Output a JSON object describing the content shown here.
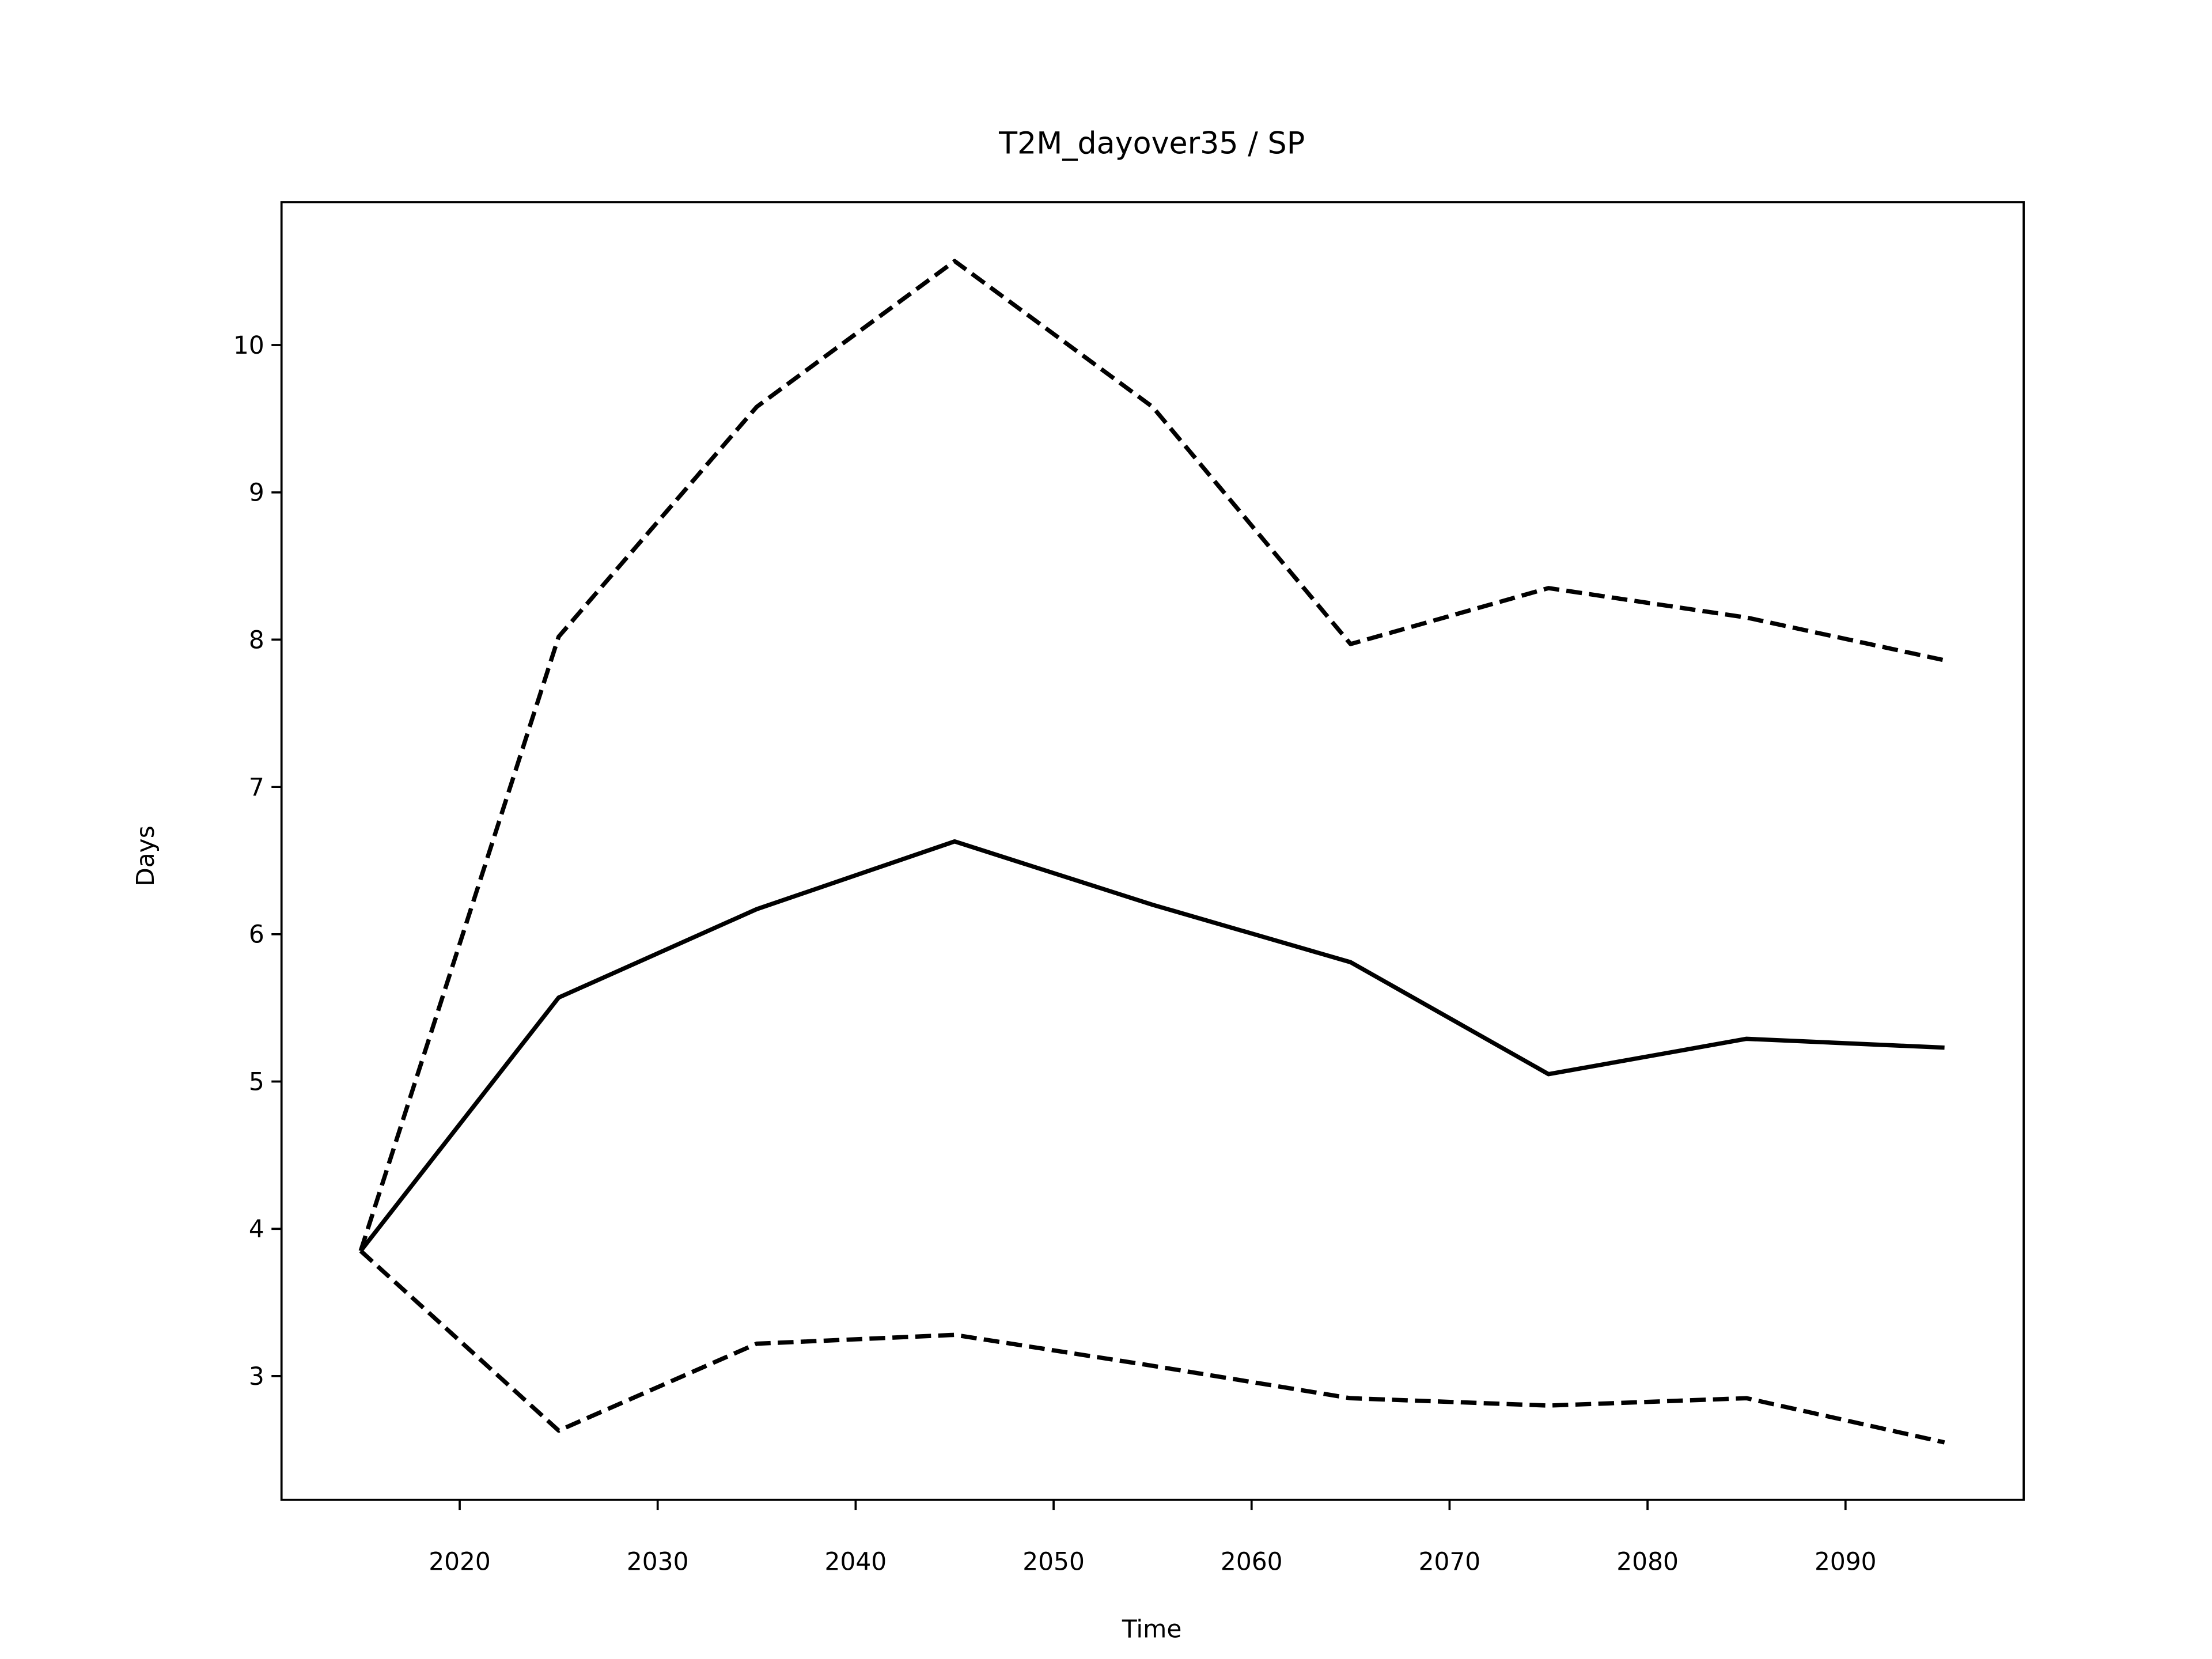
{
  "chart_data": {
    "type": "line",
    "title": "T2M_dayover35 / SP",
    "x_label": "Time",
    "y_label": "Days",
    "x": [
      2015,
      2025,
      2035,
      2045,
      2055,
      2065,
      2075,
      2085,
      2095
    ],
    "series": [
      {
        "color": "#000000",
        "linestyle": "solid",
        "values": [
          3.85,
          5.57,
          6.17,
          6.63,
          6.2,
          5.81,
          5.05,
          5.29,
          5.23
        ]
      },
      {
        "color": "#000000",
        "linestyle": "dashed",
        "values": [
          3.85,
          8.02,
          9.58,
          10.57,
          9.58,
          7.97,
          8.35,
          8.15,
          7.86
        ]
      },
      {
        "color": "#000000",
        "linestyle": "dashed",
        "values": [
          3.85,
          2.63,
          3.22,
          3.28,
          3.07,
          2.85,
          2.8,
          2.85,
          2.55
        ]
      }
    ],
    "xlim": [
      2011,
      2099
    ],
    "xticks": [
      2020,
      2030,
      2040,
      2050,
      2060,
      2070,
      2080,
      2090
    ],
    "ylim": [
      2.16,
      10.97
    ],
    "yticks": [
      3,
      4,
      5,
      6,
      7,
      8,
      9,
      10
    ],
    "grid": false
  }
}
